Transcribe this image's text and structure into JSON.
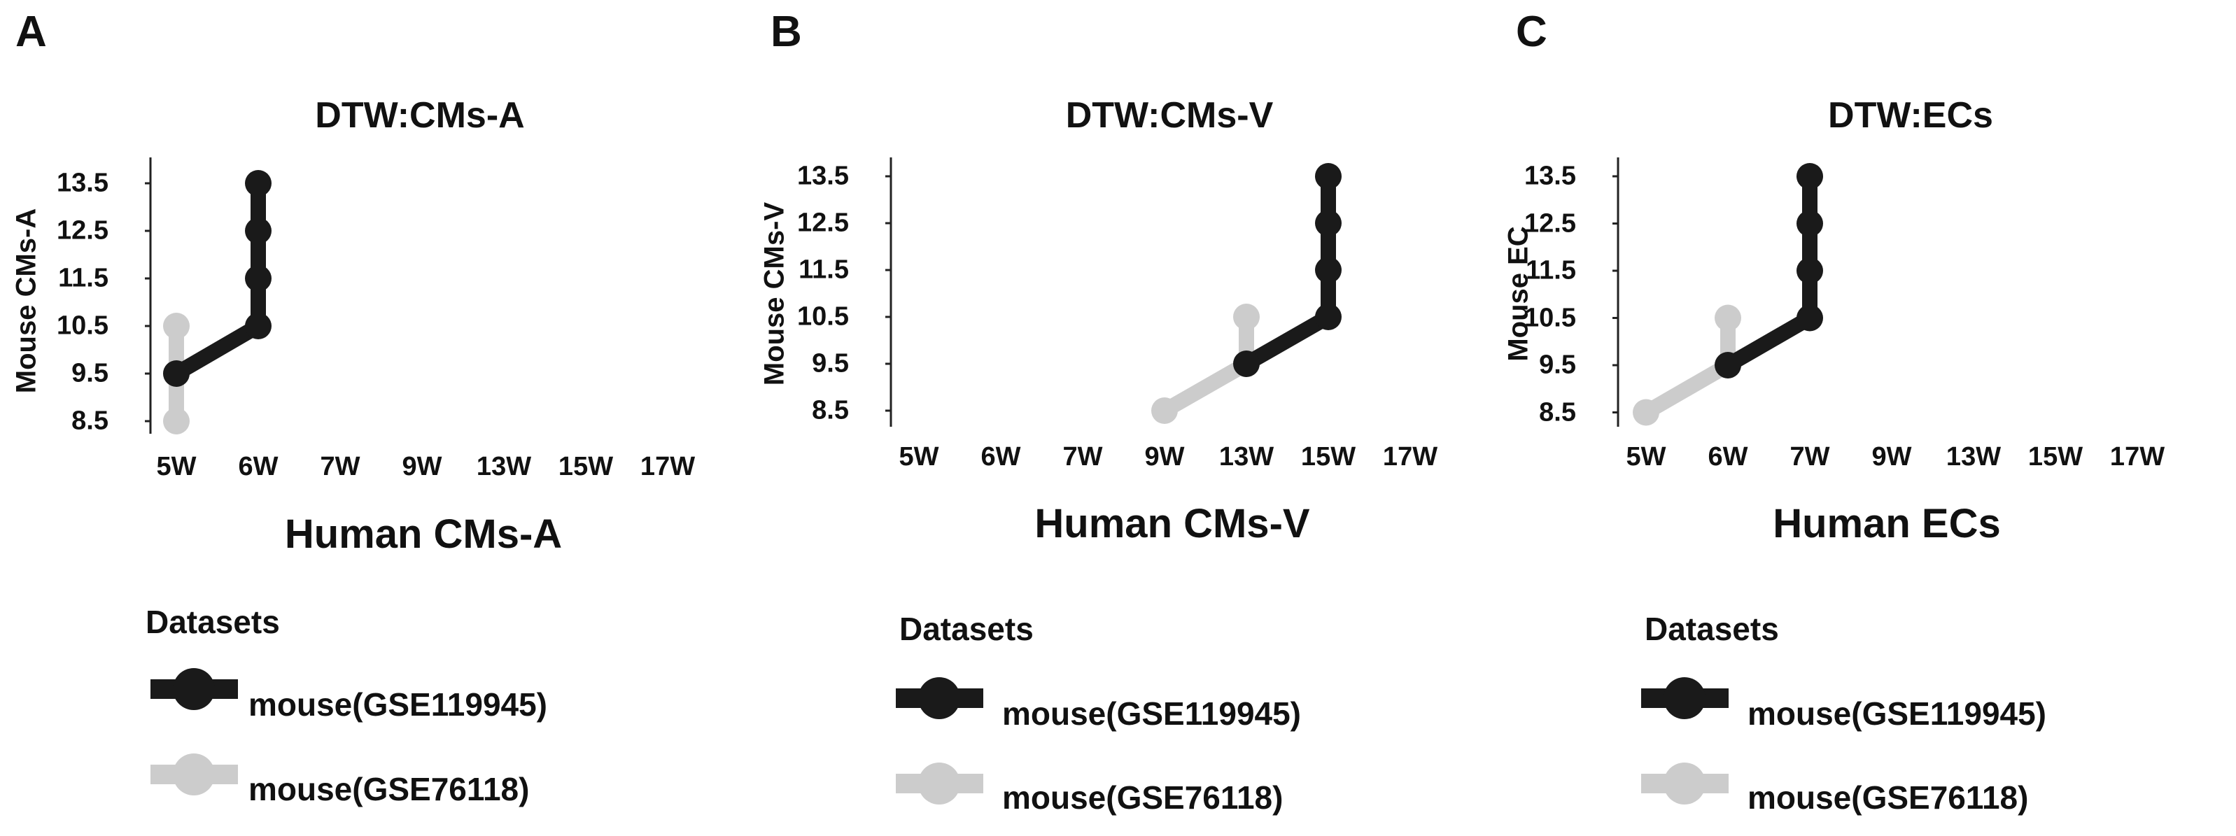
{
  "chart_data": [
    {
      "type": "line",
      "panel": "A",
      "title": "DTW:CMs-A",
      "xlabel": "Human CMs-A",
      "ylabel": "Mouse CMs-A",
      "categories": [
        "5W",
        "6W",
        "7W",
        "9W",
        "13W",
        "15W",
        "17W"
      ],
      "y_ticks": [
        "13.5",
        "12.5",
        "11.5",
        "10.5",
        "9.5",
        "8.5"
      ],
      "ylim": [
        8.5,
        13.5
      ],
      "series": [
        {
          "name": "mouse(GSE119945)",
          "color": "#1a1a1a",
          "points": [
            [
              "5W",
              9.5
            ],
            [
              "6W",
              10.5
            ],
            [
              "6W",
              11.5
            ],
            [
              "6W",
              12.5
            ],
            [
              "6W",
              13.5
            ]
          ]
        },
        {
          "name": "mouse(GSE76118)",
          "color": "#cccccc",
          "points": [
            [
              "5W",
              8.5
            ],
            [
              "5W",
              9.5
            ],
            [
              "5W",
              10.5
            ]
          ]
        }
      ]
    },
    {
      "type": "line",
      "panel": "B",
      "title": "DTW:CMs-V",
      "xlabel": "Human CMs-V",
      "ylabel": "Mouse CMs-V",
      "categories": [
        "5W",
        "6W",
        "7W",
        "9W",
        "13W",
        "15W",
        "17W"
      ],
      "y_ticks": [
        "13.5",
        "12.5",
        "11.5",
        "10.5",
        "9.5",
        "8.5"
      ],
      "ylim": [
        8.5,
        13.5
      ],
      "series": [
        {
          "name": "mouse(GSE119945)",
          "color": "#1a1a1a",
          "points": [
            [
              "13W",
              9.5
            ],
            [
              "15W",
              10.5
            ],
            [
              "15W",
              11.5
            ],
            [
              "15W",
              12.5
            ],
            [
              "15W",
              13.5
            ]
          ]
        },
        {
          "name": "mouse(GSE76118)",
          "color": "#cccccc",
          "points": [
            [
              "9W",
              8.5
            ],
            [
              "13W",
              9.5
            ],
            [
              "13W",
              10.5
            ]
          ]
        }
      ]
    },
    {
      "type": "line",
      "panel": "C",
      "title": "DTW:ECs",
      "xlabel": "Human ECs",
      "ylabel": "Mouse EC",
      "categories": [
        "5W",
        "6W",
        "7W",
        "9W",
        "13W",
        "15W",
        "17W"
      ],
      "y_ticks": [
        "13.5",
        "12.5",
        "11.5",
        "10.5",
        "9.5",
        "8.5"
      ],
      "ylim": [
        8.5,
        13.5
      ],
      "series": [
        {
          "name": "mouse(GSE119945)",
          "color": "#1a1a1a",
          "points": [
            [
              "6W",
              9.5
            ],
            [
              "7W",
              10.5
            ],
            [
              "7W",
              11.5
            ],
            [
              "7W",
              12.5
            ],
            [
              "7W",
              13.5
            ]
          ]
        },
        {
          "name": "mouse(GSE76118)",
          "color": "#cccccc",
          "points": [
            [
              "5W",
              8.5
            ],
            [
              "6W",
              9.5
            ],
            [
              "6W",
              10.5
            ]
          ]
        }
      ]
    }
  ],
  "legend": {
    "title": "Datasets",
    "entries": [
      {
        "label": "mouse(GSE119945)",
        "color": "#1a1a1a"
      },
      {
        "label": "mouse(GSE76118)",
        "color": "#cccccc"
      }
    ]
  }
}
